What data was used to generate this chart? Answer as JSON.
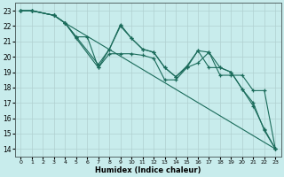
{
  "xlabel": "Humidex (Indice chaleur)",
  "bg_color": "#c8ecec",
  "line_color": "#1a6b5a",
  "xlim": [
    -0.5,
    23.5
  ],
  "ylim": [
    13.5,
    23.5
  ],
  "yticks": [
    14,
    15,
    16,
    17,
    18,
    19,
    20,
    21,
    22,
    23
  ],
  "xticks": [
    0,
    1,
    2,
    3,
    4,
    5,
    6,
    7,
    8,
    9,
    10,
    11,
    12,
    13,
    14,
    15,
    16,
    17,
    18,
    19,
    20,
    21,
    22,
    23
  ],
  "series": [
    {
      "x": [
        0,
        1,
        3,
        4,
        23
      ],
      "y": [
        23.0,
        23.0,
        22.7,
        22.2,
        14.0
      ]
    },
    {
      "x": [
        0,
        1,
        3,
        4,
        5,
        7,
        8,
        9,
        10,
        11,
        12,
        13,
        14,
        15,
        16,
        17,
        18,
        19,
        20,
        21,
        22,
        23
      ],
      "y": [
        23.0,
        23.0,
        22.7,
        22.2,
        21.2,
        19.3,
        20.2,
        20.2,
        20.2,
        20.1,
        19.9,
        18.5,
        18.5,
        19.3,
        19.6,
        20.3,
        18.8,
        18.8,
        18.8,
        17.8,
        17.8,
        14.0
      ]
    },
    {
      "x": [
        0,
        1,
        3,
        4,
        5,
        6,
        7,
        8,
        9,
        10,
        11,
        12,
        13,
        14,
        15,
        16,
        17,
        18,
        19,
        20,
        21,
        22,
        23
      ],
      "y": [
        23.0,
        23.0,
        22.7,
        22.2,
        21.3,
        21.3,
        19.3,
        20.5,
        22.0,
        21.2,
        20.5,
        20.3,
        19.3,
        18.7,
        19.4,
        20.4,
        19.3,
        19.3,
        19.0,
        17.9,
        17.0,
        15.2,
        14.0
      ]
    },
    {
      "x": [
        0,
        1,
        3,
        4,
        5,
        7,
        8,
        9,
        10,
        11,
        12,
        13,
        14,
        15,
        16,
        17,
        18,
        19,
        20,
        21,
        22,
        23
      ],
      "y": [
        23.0,
        23.0,
        22.7,
        22.2,
        21.3,
        19.5,
        20.5,
        22.1,
        21.2,
        20.5,
        20.3,
        19.3,
        18.7,
        19.3,
        20.4,
        20.3,
        19.3,
        19.0,
        17.9,
        16.8,
        15.3,
        14.0
      ]
    }
  ]
}
